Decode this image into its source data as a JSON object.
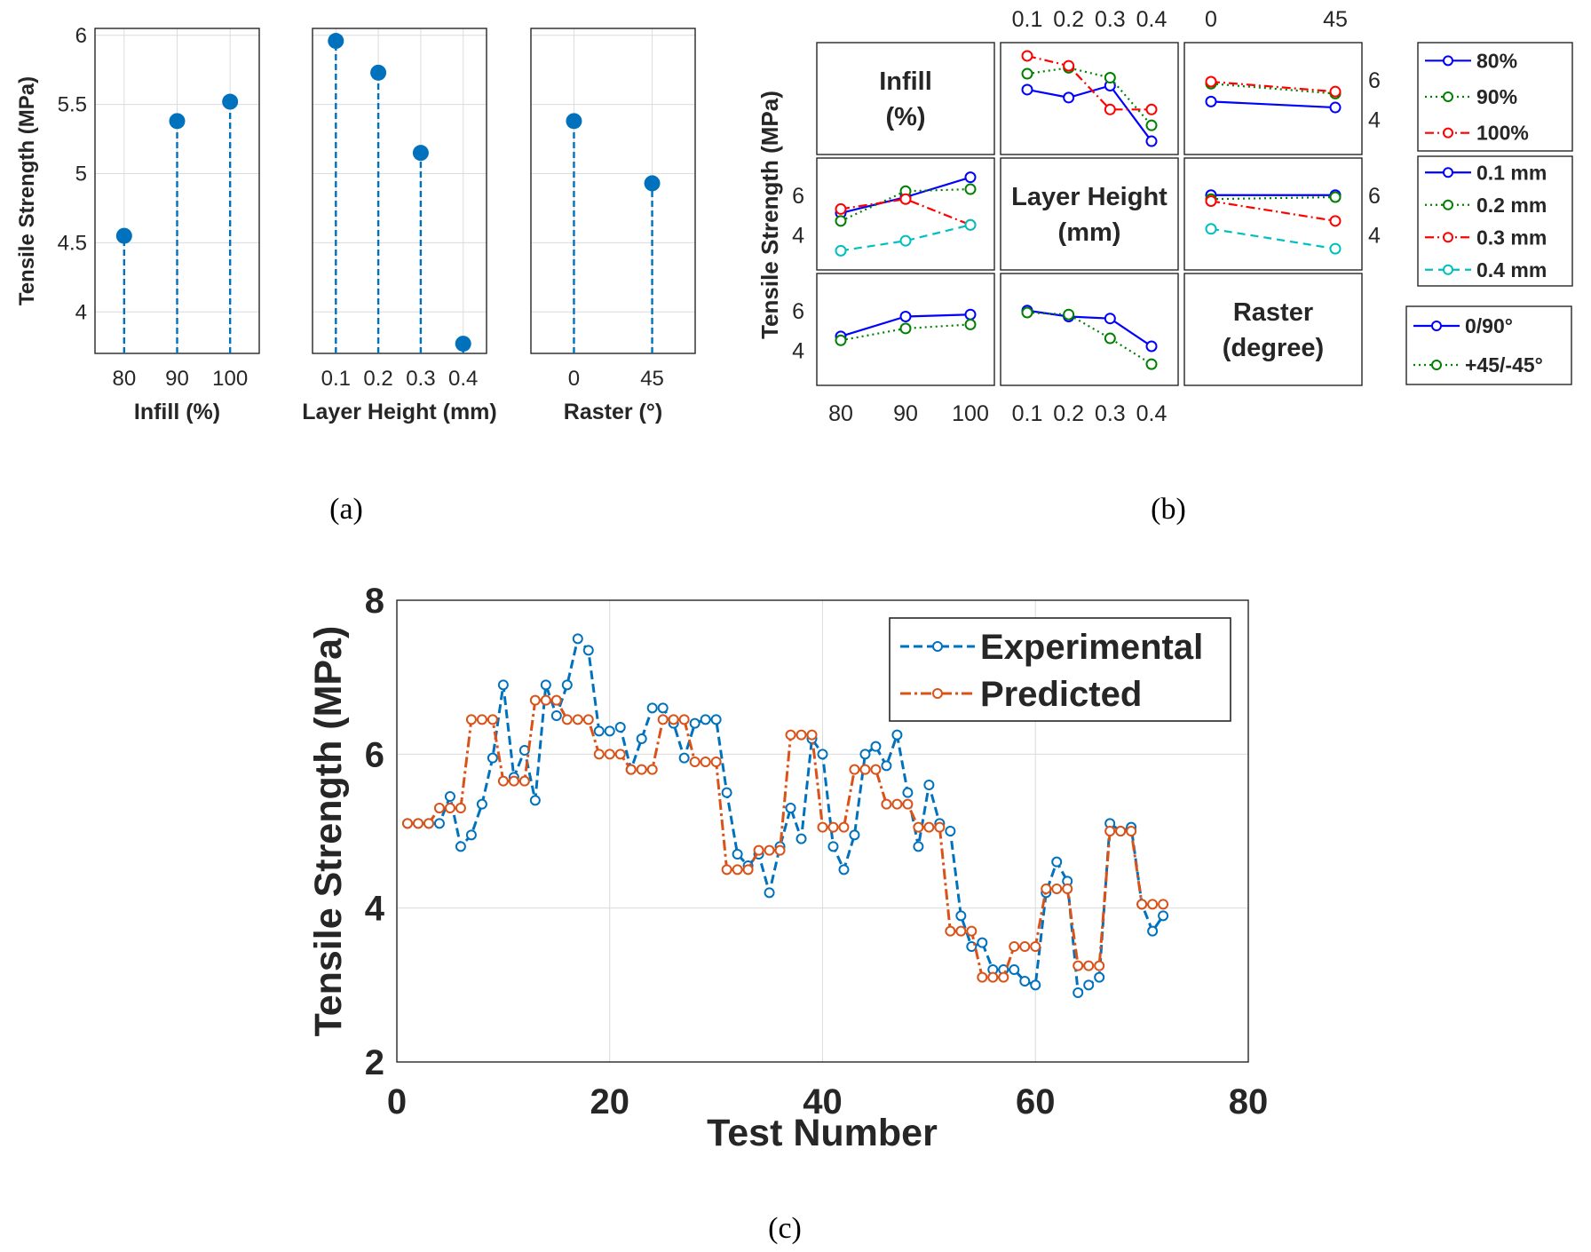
{
  "captions": [
    "(a)",
    "(b)",
    "(c)"
  ],
  "colors": {
    "blue_a": "#0072BD",
    "blue": "#0000FF",
    "green": "#008000",
    "red": "#FF0000",
    "cyan": "#00BFBF",
    "exp": "#0072BD",
    "pred": "#D95319"
  },
  "chart_data": [
    {
      "type": "stem",
      "panel": "a",
      "ylabel": "Tensile Strength (MPa)",
      "ylim": [
        3.7,
        6.05
      ],
      "yticks": [
        "4",
        "4.5",
        "5",
        "5.5",
        "6"
      ],
      "subplots": [
        {
          "xlabel": "Infill (%)",
          "categories": [
            "80",
            "90",
            "100"
          ],
          "values": [
            4.55,
            5.38,
            5.52
          ]
        },
        {
          "xlabel": "Layer Height (mm)",
          "categories": [
            "0.1",
            "0.2",
            "0.3",
            "0.4"
          ],
          "values": [
            5.96,
            5.73,
            5.15,
            3.77
          ]
        },
        {
          "xlabel": "Raster (°)",
          "categories": [
            "0",
            "45"
          ],
          "values": [
            5.38,
            4.93
          ]
        }
      ]
    },
    {
      "type": "line",
      "panel": "b",
      "ylabel": "Tensile Strength (MPa)",
      "diag_labels": [
        [
          "Infill",
          "(%)"
        ],
        [
          "Layer Height",
          "(mm)"
        ],
        [
          "Raster",
          "(degree)"
        ]
      ],
      "bottom_ticks": [
        [
          "80",
          "90",
          "100"
        ],
        [
          "0.1",
          "0.2",
          "0.3",
          "0.4"
        ]
      ],
      "top_ticks": [
        [
          "0.1",
          "0.2",
          "0.3",
          "0.4"
        ],
        [
          "0",
          "45"
        ]
      ],
      "right_ticks": [
        "6",
        "4"
      ],
      "left_ticks": [
        "6",
        "4"
      ],
      "legends": [
        [
          {
            "name": "80%",
            "color": "blue",
            "style": "solid"
          },
          {
            "name": "90%",
            "color": "green",
            "style": "dotted"
          },
          {
            "name": "100%",
            "color": "red",
            "style": "dashdot"
          }
        ],
        [
          {
            "name": "0.1 mm",
            "color": "blue",
            "style": "solid"
          },
          {
            "name": "0.2 mm",
            "color": "green",
            "style": "dotted"
          },
          {
            "name": "0.3 mm",
            "color": "red",
            "style": "dashdot"
          },
          {
            "name": "0.4 mm",
            "color": "cyan",
            "style": "dashed"
          }
        ],
        [
          {
            "name": "0/90°",
            "color": "blue",
            "style": "solid"
          },
          {
            "name": "+45/-45°",
            "color": "green",
            "style": "dotted"
          }
        ]
      ],
      "cells": [
        {
          "row": 0,
          "col": 1,
          "x": [
            1,
            2,
            3,
            4
          ],
          "series": [
            {
              "color": "blue",
              "style": "solid",
              "values": [
                5.5,
                5.1,
                5.7,
                2.9
              ]
            },
            {
              "color": "green",
              "style": "dotted",
              "values": [
                6.3,
                6.6,
                6.1,
                3.7
              ]
            },
            {
              "color": "red",
              "style": "dashdot",
              "values": [
                7.2,
                6.7,
                4.5,
                4.5
              ]
            }
          ]
        },
        {
          "row": 0,
          "col": 2,
          "x": [
            0,
            45
          ],
          "series": [
            {
              "color": "blue",
              "style": "solid",
              "values": [
                4.9,
                4.6
              ]
            },
            {
              "color": "green",
              "style": "dotted",
              "values": [
                5.8,
                5.3
              ]
            },
            {
              "color": "red",
              "style": "dashdot",
              "values": [
                5.9,
                5.4
              ]
            }
          ]
        },
        {
          "row": 1,
          "col": 0,
          "x": [
            80,
            90,
            100
          ],
          "series": [
            {
              "color": "blue",
              "style": "solid",
              "values": [
                5.1,
                5.9,
                6.9
              ]
            },
            {
              "color": "green",
              "style": "dotted",
              "values": [
                4.7,
                6.2,
                6.3
              ]
            },
            {
              "color": "red",
              "style": "dashdot",
              "values": [
                5.3,
                5.8,
                4.5
              ]
            },
            {
              "color": "cyan",
              "style": "dashed",
              "values": [
                3.2,
                3.7,
                4.5
              ]
            }
          ]
        },
        {
          "row": 1,
          "col": 2,
          "x": [
            0,
            45
          ],
          "series": [
            {
              "color": "blue",
              "style": "solid",
              "values": [
                6.0,
                6.0
              ]
            },
            {
              "color": "green",
              "style": "dotted",
              "values": [
                5.8,
                5.9
              ]
            },
            {
              "color": "red",
              "style": "dashdot",
              "values": [
                5.7,
                4.7
              ]
            },
            {
              "color": "cyan",
              "style": "dashed",
              "values": [
                4.3,
                3.3
              ]
            }
          ]
        },
        {
          "row": 2,
          "col": 0,
          "x": [
            80,
            90,
            100
          ],
          "series": [
            {
              "color": "blue",
              "style": "solid",
              "values": [
                4.7,
                5.7,
                5.8
              ]
            },
            {
              "color": "green",
              "style": "dotted",
              "values": [
                4.5,
                5.1,
                5.3
              ]
            }
          ]
        },
        {
          "row": 2,
          "col": 1,
          "x": [
            1,
            2,
            3,
            4
          ],
          "series": [
            {
              "color": "blue",
              "style": "solid",
              "values": [
                6.0,
                5.7,
                5.6,
                4.2
              ]
            },
            {
              "color": "green",
              "style": "dotted",
              "values": [
                5.9,
                5.8,
                4.6,
                3.3
              ]
            }
          ]
        }
      ]
    },
    {
      "type": "line",
      "panel": "c",
      "xlabel": "Test Number",
      "ylabel": "Tensile Strength (MPa)",
      "xlim": [
        0,
        80
      ],
      "ylim": [
        2,
        8
      ],
      "xticks": [
        "0",
        "20",
        "40",
        "60",
        "80"
      ],
      "yticks": [
        "2",
        "4",
        "6",
        "8"
      ],
      "legend": [
        "Experimental",
        "Predicted"
      ],
      "series": [
        {
          "name": "Experimental",
          "color": "exp",
          "values": [
            5.1,
            5.1,
            5.1,
            5.1,
            5.45,
            4.8,
            4.95,
            5.35,
            5.95,
            6.9,
            5.7,
            6.05,
            5.4,
            6.9,
            6.5,
            6.9,
            7.5,
            7.35,
            6.3,
            6.3,
            6.35,
            5.8,
            6.2,
            6.6,
            6.6,
            6.4,
            5.95,
            6.4,
            6.45,
            6.45,
            5.5,
            4.7,
            4.55,
            4.7,
            4.2,
            4.8,
            5.3,
            4.9,
            6.2,
            6.0,
            4.8,
            4.5,
            4.95,
            6.0,
            6.1,
            5.85,
            6.25,
            5.5,
            4.8,
            5.6,
            5.1,
            5.0,
            3.9,
            3.5,
            3.55,
            3.2,
            3.2,
            3.2,
            3.05,
            3.0,
            4.2,
            4.6,
            4.35,
            2.9,
            3.0,
            3.1,
            5.1,
            5.0,
            5.05,
            4.05,
            3.7,
            3.9
          ]
        },
        {
          "name": "Predicted",
          "color": "pred",
          "values": [
            5.1,
            5.1,
            5.1,
            5.3,
            5.3,
            5.3,
            6.45,
            6.45,
            6.45,
            5.65,
            5.65,
            5.65,
            6.7,
            6.7,
            6.7,
            6.45,
            6.45,
            6.45,
            6.0,
            6.0,
            6.0,
            5.8,
            5.8,
            5.8,
            6.45,
            6.45,
            6.45,
            5.9,
            5.9,
            5.9,
            4.5,
            4.5,
            4.5,
            4.75,
            4.75,
            4.75,
            6.25,
            6.25,
            6.25,
            5.05,
            5.05,
            5.05,
            5.8,
            5.8,
            5.8,
            5.35,
            5.35,
            5.35,
            5.05,
            5.05,
            5.05,
            3.7,
            3.7,
            3.7,
            3.1,
            3.1,
            3.1,
            3.5,
            3.5,
            3.5,
            4.25,
            4.25,
            4.25,
            3.25,
            3.25,
            3.25,
            5.0,
            5.0,
            5.0,
            4.05,
            4.05,
            4.05
          ]
        }
      ]
    }
  ]
}
